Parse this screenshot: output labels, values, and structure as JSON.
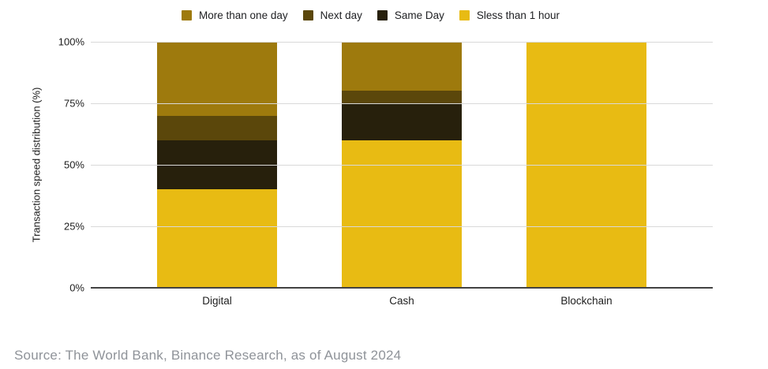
{
  "legend": {
    "items": [
      {
        "label": "More than one day",
        "color": "#9E7A0D"
      },
      {
        "label": "Next day",
        "color": "#5B470B"
      },
      {
        "label": "Same Day",
        "color": "#27200C"
      },
      {
        "label": "Sless than 1 hour",
        "color": "#E8BB13"
      }
    ]
  },
  "chart_data": {
    "type": "bar",
    "stacked": true,
    "title": "",
    "xlabel": "",
    "ylabel": "Transaction speed distribution (%)",
    "categories": [
      "Digital",
      "Cash",
      "Blockchain"
    ],
    "series": [
      {
        "name": "Sless than 1 hour",
        "color": "#E8BB13",
        "values": [
          40,
          60,
          100
        ]
      },
      {
        "name": "Same Day",
        "color": "#27200C",
        "values": [
          20,
          15,
          0
        ]
      },
      {
        "name": "Next day",
        "color": "#5B470B",
        "values": [
          10,
          5,
          0
        ]
      },
      {
        "name": "More than one day",
        "color": "#9E7A0D",
        "values": [
          30,
          20,
          0
        ]
      }
    ],
    "y_ticks": [
      "100%",
      "75%",
      "50%",
      "25%",
      "0%"
    ],
    "ylim": [
      0,
      100
    ],
    "grid": true,
    "legend_position": "top"
  },
  "ui_colors": {
    "background": "#FFFFFF",
    "gridline": "#D9D9D9",
    "axis_line": "#424242",
    "tick_text": "#1E1E1E",
    "source_text": "#8F9399"
  },
  "source": {
    "text": "Source: The World Bank, Binance Research, as of August 2024"
  }
}
